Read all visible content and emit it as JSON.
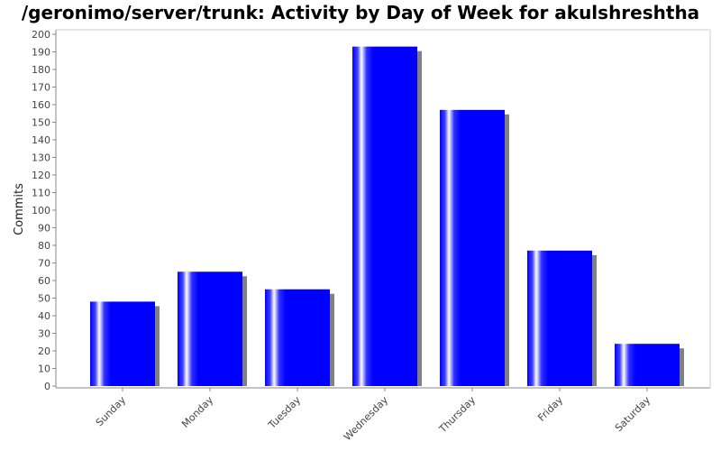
{
  "chart_data": {
    "type": "bar",
    "title": "/geronimo/server/trunk: Activity by Day of Week for akulshreshtha",
    "xlabel": "",
    "ylabel": "Commits",
    "categories": [
      "Sunday",
      "Monday",
      "Tuesday",
      "Wednesday",
      "Thursday",
      "Friday",
      "Saturday"
    ],
    "values": [
      48,
      65,
      55,
      193,
      157,
      77,
      24
    ],
    "ylim": [
      0,
      200
    ],
    "ytick_step": 10,
    "grid": false,
    "legend": "none",
    "colors": {
      "bar": "#0000ff",
      "bar_highlight": "#ffffff",
      "shadow": "#808080",
      "axis": "#888888"
    }
  }
}
